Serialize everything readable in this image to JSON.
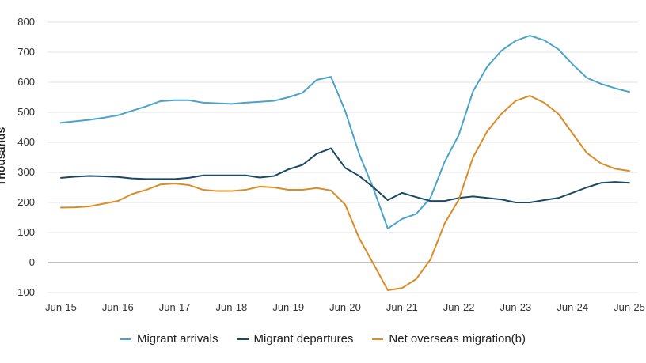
{
  "chart_data": {
    "type": "line",
    "ylabel": "Thousands",
    "ylim": [
      -100,
      800
    ],
    "yticks": [
      -100,
      0,
      100,
      200,
      300,
      400,
      500,
      600,
      700,
      800
    ],
    "xticks": [
      "Jun-15",
      "Jun-16",
      "Jun-17",
      "Jun-18",
      "Jun-19",
      "Jun-20",
      "Jun-21",
      "Jun-22",
      "Jun-23",
      "Jun-24",
      "Jun-25"
    ],
    "x_quarters_start": "Jun-15",
    "grid": true,
    "legend_position": "bottom",
    "series": [
      {
        "name": "Migrant arrivals",
        "color": "#4BA3C7",
        "values": [
          465,
          470,
          475,
          482,
          490,
          505,
          520,
          537,
          540,
          540,
          532,
          530,
          528,
          532,
          535,
          538,
          550,
          565,
          608,
          618,
          505,
          360,
          245,
          113,
          145,
          162,
          215,
          335,
          425,
          570,
          652,
          705,
          738,
          755,
          740,
          710,
          660,
          615,
          595,
          580,
          568
        ]
      },
      {
        "name": "Migrant departures",
        "color": "#1B4965",
        "values": [
          282,
          286,
          288,
          287,
          285,
          280,
          278,
          278,
          278,
          282,
          290,
          290,
          290,
          290,
          283,
          288,
          310,
          325,
          362,
          380,
          315,
          288,
          250,
          208,
          232,
          218,
          205,
          205,
          215,
          220,
          215,
          210,
          200,
          200,
          208,
          215,
          232,
          250,
          265,
          268,
          265
        ]
      },
      {
        "name": "Net overseas migration(b)",
        "color": "#D98C27",
        "values": [
          183,
          184,
          187,
          196,
          205,
          228,
          242,
          260,
          263,
          258,
          242,
          238,
          238,
          242,
          253,
          250,
          242,
          242,
          248,
          240,
          193,
          80,
          -5,
          -92,
          -85,
          -55,
          10,
          130,
          210,
          350,
          437,
          495,
          538,
          555,
          532,
          495,
          430,
          365,
          330,
          312,
          305
        ]
      }
    ]
  }
}
